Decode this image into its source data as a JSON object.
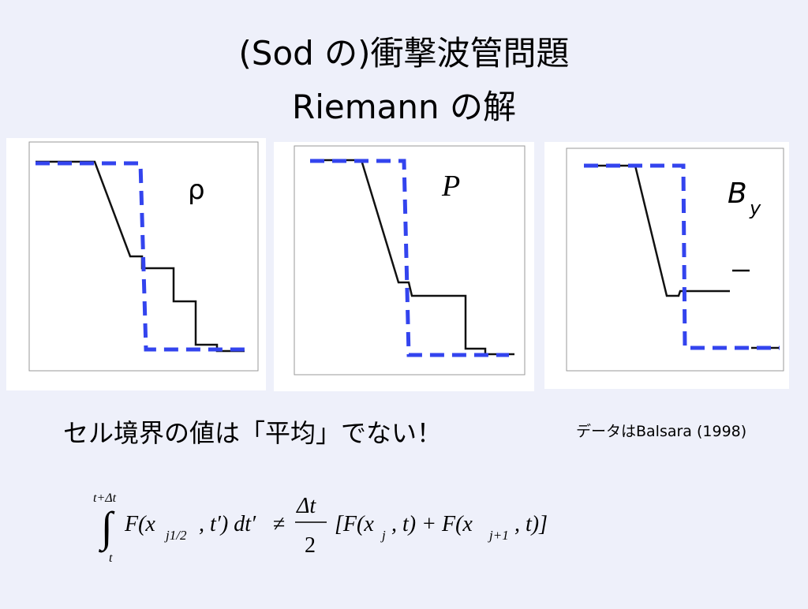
{
  "header": {
    "title_line1": "(Sod の)衝撃波管問題",
    "title_line2": "Riemann の解"
  },
  "panels": [
    {
      "label": "ρ"
    },
    {
      "label": "P"
    },
    {
      "label": "B",
      "subscript": "y"
    }
  ],
  "statement": "セル境界の値は「平均」でない！",
  "citation": "データはBalsara (1998)",
  "formula": {
    "upper_limit": "t+Δt",
    "lower_limit": "t",
    "integrand": "F(x",
    "integrand_sub": "j1/2",
    "integrand_rest": ", t′) dt′",
    "relation": "≠",
    "numerator": "Δt",
    "denominator": "2",
    "term1": "[F(x",
    "term1_sub": "j",
    "term1_rest": ", t) + F(x",
    "term2_sub": "j+1",
    "term2_rest": ", t)]"
  }
}
